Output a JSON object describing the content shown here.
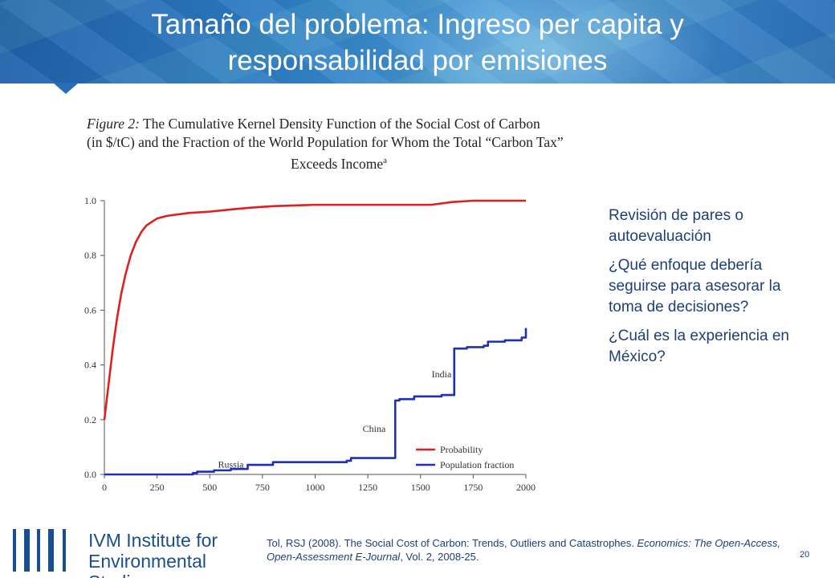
{
  "slide": {
    "title_line1": "Tamaño del problema: Ingreso per capita y",
    "title_line2": "responsabilidad por emisiones",
    "page_number": "20"
  },
  "figure": {
    "label": "Figure 2:",
    "caption_line1_rest": " The Cumulative Kernel Density Function of the Social Cost of Carbon",
    "caption_line2": "(in $/tC) and the Fraction of the World Population for Whom the Total “Carbon Tax”",
    "caption_line3": "Exceeds Income",
    "caption_sup": "a"
  },
  "side_text": {
    "p1": "Revisión de pares o autoevaluación",
    "p2": "¿Qué enfoque debería seguirse para asesorar la toma de decisiones?",
    "p3": "¿Cuál es la experiencia en México?"
  },
  "logo": {
    "line1_ivm": "IVM",
    "line1_rest": " Institute for",
    "line2": "Environmental Studies"
  },
  "reference": {
    "part1": "Tol, RSJ (2008). The Social Cost of Carbon: Trends, Outliers and Catastrophes. ",
    "journal": "Economics: The Open-Access, Open-Assessment E-Journal",
    "part2": ", Vol. 2, 2008-25."
  },
  "colors": {
    "title_text": "#ffffff",
    "header_blue": "#2a6db6",
    "probability": "#e02020",
    "population": "#1f2fb8",
    "body_text": "#1c3f7a"
  },
  "chart_data": {
    "type": "line",
    "xlim": [
      0,
      2000
    ],
    "ylim": [
      0,
      1
    ],
    "x_ticks": [
      "0",
      "250",
      "500",
      "750",
      "1000",
      "1250",
      "1500",
      "1750",
      "2000"
    ],
    "y_ticks": [
      "0.0",
      "0.2",
      "0.4",
      "0.6",
      "0.8",
      "1.0"
    ],
    "grid": false,
    "legend_position": "bottom-right",
    "series": [
      {
        "name": "Probability",
        "color": "#e02020",
        "x": [
          0,
          20,
          40,
          60,
          80,
          100,
          125,
          150,
          175,
          200,
          250,
          300,
          400,
          500,
          600,
          700,
          800,
          1000,
          1200,
          1400,
          1550,
          1650,
          1750,
          2000
        ],
        "y": [
          0.2,
          0.33,
          0.46,
          0.57,
          0.66,
          0.73,
          0.8,
          0.85,
          0.885,
          0.91,
          0.935,
          0.945,
          0.955,
          0.96,
          0.968,
          0.975,
          0.98,
          0.985,
          0.985,
          0.985,
          0.985,
          0.995,
          1.0,
          1.0
        ]
      },
      {
        "name": "Population fraction",
        "color": "#1f2fb8",
        "step": true,
        "x": [
          0,
          420,
          440,
          520,
          600,
          680,
          800,
          1150,
          1170,
          1380,
          1400,
          1470,
          1600,
          1660,
          1720,
          1800,
          1820,
          1900,
          1980,
          2000
        ],
        "y": [
          0.0,
          0.005,
          0.01,
          0.015,
          0.02,
          0.035,
          0.045,
          0.05,
          0.06,
          0.27,
          0.275,
          0.285,
          0.29,
          0.46,
          0.465,
          0.47,
          0.485,
          0.49,
          0.5,
          0.535
        ]
      }
    ],
    "annotations": [
      {
        "text": "Russia",
        "x": 600,
        "y": 0.025
      },
      {
        "text": "China",
        "x": 1280,
        "y": 0.155
      },
      {
        "text": "India",
        "x": 1600,
        "y": 0.355
      }
    ]
  }
}
